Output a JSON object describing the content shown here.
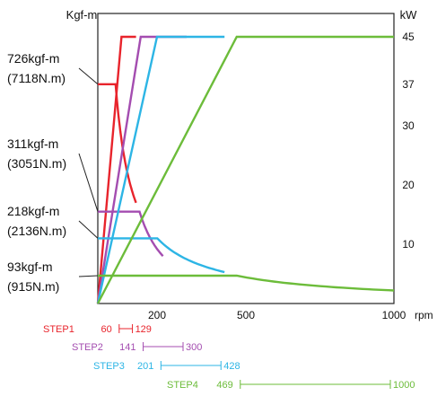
{
  "chart_data": {
    "type": "line",
    "y_left_label": "Kgf-m",
    "y_right_label": "kW",
    "x_unit_label": "rpm",
    "x_range": [
      0,
      1000
    ],
    "y_right_range": [
      0,
      45
    ],
    "x_ticks": [
      200,
      500,
      1000
    ],
    "y_right_ticks": [
      10,
      20,
      30,
      37,
      45
    ],
    "torque_labels": [
      {
        "line1": "726kgf-m",
        "line2": "(7118N.m)",
        "series": "STEP1"
      },
      {
        "line1": "311kgf-m",
        "line2": "(3051N.m)",
        "series": "STEP2"
      },
      {
        "line1": "218kgf-m",
        "line2": "(2136N.m)",
        "series": "STEP3"
      },
      {
        "line1": "93kgf-m",
        "line2": "(915N.m)",
        "series": "STEP4"
      }
    ],
    "series": [
      {
        "name": "STEP1",
        "color": "#e8242c",
        "start_rpm": 60,
        "end_rpm": 129,
        "power": [
          [
            0,
            0
          ],
          [
            80,
            45
          ],
          [
            129,
            45
          ]
        ],
        "torque": [
          [
            0,
            37
          ],
          [
            60,
            37
          ],
          [
            129,
            17
          ]
        ]
      },
      {
        "name": "STEP2",
        "color": "#a44db0",
        "start_rpm": 141,
        "end_rpm": 300,
        "power": [
          [
            0,
            0
          ],
          [
            145,
            45
          ],
          [
            300,
            45
          ]
        ],
        "torque": [
          [
            0,
            15.5
          ],
          [
            141,
            15.5
          ],
          [
            220,
            8
          ]
        ]
      },
      {
        "name": "STEP3",
        "color": "#2db5e5",
        "start_rpm": 201,
        "end_rpm": 428,
        "power": [
          [
            0,
            0
          ],
          [
            200,
            45
          ],
          [
            428,
            45
          ]
        ],
        "torque": [
          [
            0,
            11
          ],
          [
            201,
            11
          ],
          [
            428,
            5.3
          ]
        ]
      },
      {
        "name": "STEP4",
        "color": "#6cbc3a",
        "start_rpm": 469,
        "end_rpm": 1000,
        "power": [
          [
            0,
            0
          ],
          [
            469,
            45
          ],
          [
            1000,
            45
          ]
        ],
        "torque": [
          [
            0,
            4.7
          ],
          [
            469,
            4.7
          ],
          [
            1000,
            2.2
          ]
        ]
      }
    ]
  }
}
